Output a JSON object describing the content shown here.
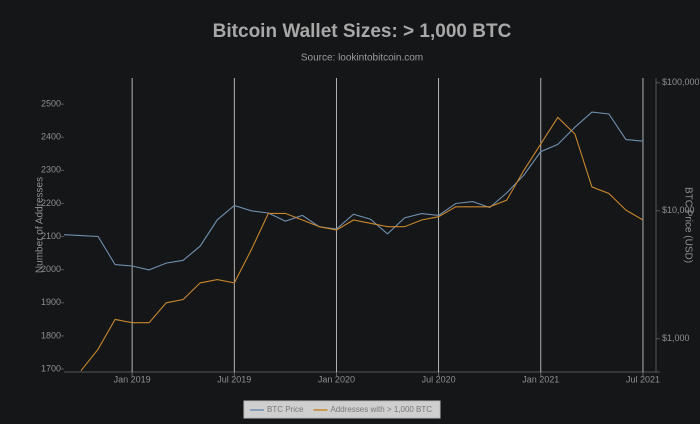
{
  "chart_data": {
    "type": "line",
    "title": "Bitcoin Wallet Sizes: > 1,000 BTC",
    "subtitle": "Source: lookintobitcoin.com",
    "y_label": "Number of Addresses",
    "y2_label": "BTC Price (USD)",
    "x": [
      "2018-09",
      "2018-10",
      "2018-11",
      "2018-12",
      "2019-01",
      "2019-02",
      "2019-03",
      "2019-04",
      "2019-05",
      "2019-06",
      "2019-07",
      "2019-08",
      "2019-09",
      "2019-10",
      "2019-11",
      "2019-12",
      "2020-01",
      "2020-02",
      "2020-03",
      "2020-04",
      "2020-05",
      "2020-06",
      "2020-07",
      "2020-08",
      "2020-09",
      "2020-10",
      "2020-11",
      "2020-12",
      "2021-01",
      "2021-02",
      "2021-03",
      "2021-04",
      "2021-05",
      "2021-06",
      "2021-07"
    ],
    "xlim": [
      "2018-09",
      "2021-08"
    ],
    "xticks": [
      {
        "value": "2019-01",
        "label": "Jan 2019"
      },
      {
        "value": "2019-07",
        "label": "Jul 2019"
      },
      {
        "value": "2020-01",
        "label": "Jan 2020"
      },
      {
        "value": "2020-07",
        "label": "Jul 2020"
      },
      {
        "value": "2021-01",
        "label": "Jan 2021"
      },
      {
        "value": "2021-07",
        "label": "Jul 2021"
      }
    ],
    "ylim": [
      1691,
      2579
    ],
    "yticks": [
      1700,
      1800,
      1900,
      2000,
      2100,
      2200,
      2300,
      2400,
      2500
    ],
    "y2lim": [
      550,
      109000
    ],
    "y2scale": "log",
    "y2ticks": [
      {
        "value": 1000,
        "label": "$1,000"
      },
      {
        "value": 10000,
        "label": "$10,000"
      },
      {
        "value": 100000,
        "label": "$100,000"
      }
    ],
    "grid": "x",
    "legend": "bottom",
    "series": [
      {
        "name": "BTC Price",
        "color": "#6f8fb0",
        "axis": "y2",
        "values": [
          6500,
          6400,
          6300,
          3800,
          3700,
          3450,
          3900,
          4100,
          5300,
          8500,
          11000,
          10000,
          9600,
          8300,
          9200,
          7500,
          7200,
          9400,
          8600,
          6600,
          8800,
          9500,
          9200,
          11400,
          11800,
          10600,
          13800,
          19000,
          29000,
          33000,
          45000,
          59000,
          57000,
          36000,
          35000
        ]
      },
      {
        "name": "Addresses with > 1,000 BTC",
        "color": "#c8872e",
        "values": [
          null,
          1695,
          1760,
          1850,
          1840,
          1840,
          1900,
          1910,
          1960,
          1970,
          1960,
          2060,
          2170,
          2170,
          2150,
          2130,
          2120,
          2150,
          2140,
          2130,
          2130,
          2150,
          2160,
          2190,
          2190,
          2190,
          2210,
          2300,
          2380,
          2460,
          2410,
          2250,
          2230,
          2180,
          2150
        ]
      }
    ]
  }
}
